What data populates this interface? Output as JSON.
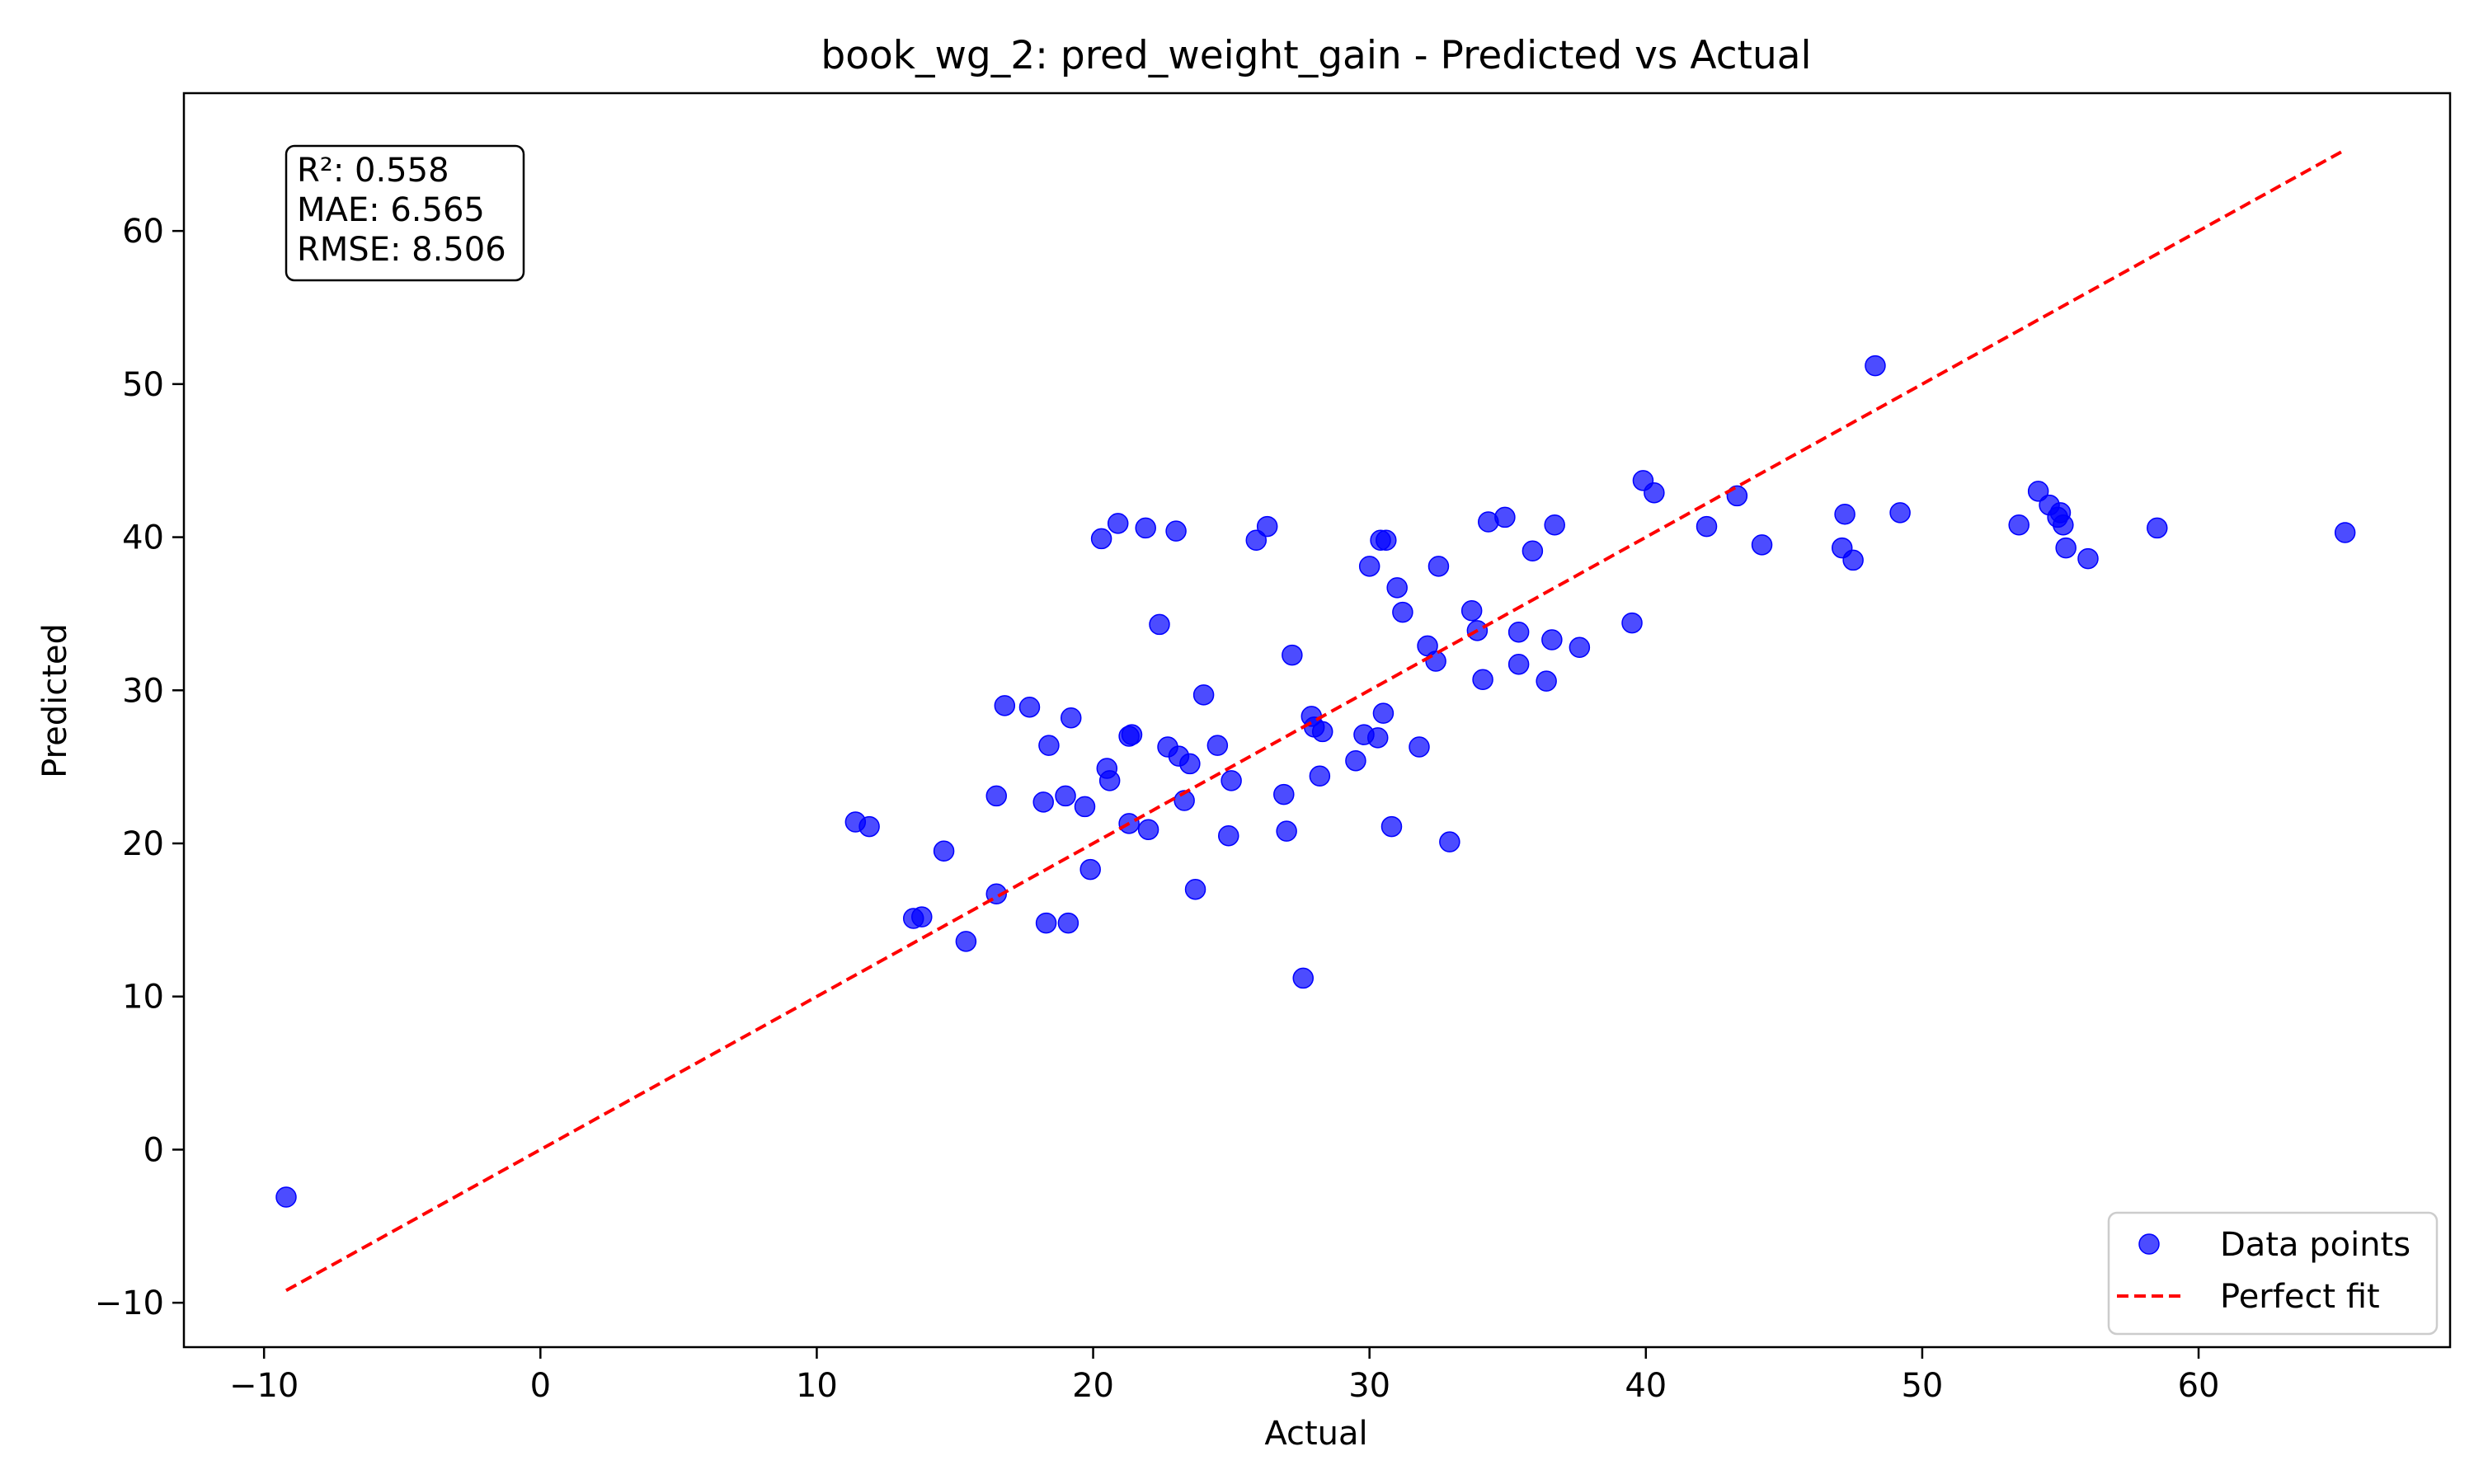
{
  "chart_data": {
    "type": "scatter",
    "title": "book_wg_2: pred_weight_gain - Predicted vs Actual",
    "xlabel": "Actual",
    "ylabel": "Predicted",
    "xlim": [
      -12.9,
      69.1
    ],
    "ylim": [
      -12.9,
      69.0
    ],
    "xticks": [
      -10,
      0,
      10,
      20,
      30,
      40,
      50,
      60
    ],
    "yticks": [
      -10,
      0,
      10,
      20,
      30,
      40,
      50,
      60
    ],
    "xtick_labels": [
      "−10",
      "0",
      "10",
      "20",
      "30",
      "40",
      "50",
      "60"
    ],
    "ytick_labels": [
      "−10",
      "0",
      "10",
      "20",
      "30",
      "40",
      "50",
      "60"
    ],
    "grid": false,
    "legend_position": "lower-right",
    "stats_box": [
      "R²: 0.558",
      "MAE: 6.565",
      "RMSE: 8.506"
    ],
    "series": [
      {
        "name": "Data points",
        "kind": "scatter",
        "color": "#0000ff",
        "x": [
          -9.2,
          11.4,
          11.9,
          13.5,
          13.8,
          14.6,
          15.4,
          16.5,
          16.5,
          16.8,
          17.7,
          18.2,
          18.3,
          18.4,
          19.0,
          19.1,
          19.2,
          19.7,
          19.9,
          20.3,
          20.5,
          20.6,
          20.9,
          21.3,
          21.3,
          21.4,
          21.9,
          22.0,
          22.4,
          22.7,
          23.0,
          23.1,
          23.3,
          23.5,
          23.7,
          24.0,
          24.5,
          24.9,
          25.0,
          25.9,
          26.3,
          26.9,
          27.0,
          27.2,
          27.6,
          27.9,
          28.0,
          28.2,
          28.3,
          29.5,
          29.8,
          30.0,
          30.3,
          30.4,
          30.5,
          30.6,
          30.8,
          31.0,
          31.2,
          31.8,
          32.1,
          32.4,
          32.5,
          32.9,
          33.7,
          33.9,
          34.1,
          34.3,
          34.9,
          35.4,
          35.4,
          35.9,
          36.4,
          36.6,
          36.7,
          37.6,
          39.5,
          39.9,
          40.3,
          42.2,
          43.3,
          44.2,
          47.1,
          47.2,
          47.5,
          48.3,
          49.2,
          53.5,
          54.2,
          54.6,
          54.9,
          55.0,
          55.1,
          55.2,
          56.0,
          58.5,
          65.3
        ],
        "y": [
          -3.1,
          21.4,
          21.1,
          15.1,
          15.2,
          19.5,
          13.6,
          23.1,
          16.7,
          29.0,
          28.9,
          22.7,
          14.8,
          26.4,
          23.1,
          14.8,
          28.2,
          22.4,
          18.3,
          39.9,
          24.9,
          24.1,
          40.9,
          27.0,
          21.3,
          27.1,
          40.6,
          20.9,
          34.3,
          26.3,
          40.4,
          25.7,
          22.8,
          25.2,
          17.0,
          29.7,
          26.4,
          20.5,
          24.1,
          39.8,
          40.7,
          23.2,
          20.8,
          32.3,
          11.2,
          28.3,
          27.6,
          24.4,
          27.3,
          25.4,
          27.1,
          38.1,
          26.9,
          39.8,
          28.5,
          39.8,
          21.1,
          36.7,
          35.1,
          26.3,
          32.9,
          31.9,
          38.1,
          20.1,
          35.2,
          33.9,
          30.7,
          41.0,
          41.3,
          33.8,
          31.7,
          39.1,
          30.6,
          33.3,
          40.8,
          32.8,
          34.4,
          43.7,
          42.9,
          40.7,
          42.7,
          39.5,
          39.3,
          41.5,
          38.5,
          51.2,
          41.6,
          40.8,
          43.0,
          42.1,
          41.3,
          41.6,
          40.8,
          39.3,
          38.6,
          40.6,
          40.3
        ]
      },
      {
        "name": "Perfect fit",
        "kind": "line",
        "color": "#ff0000",
        "dashed": true,
        "x": [
          -9.2,
          65.3
        ],
        "y": [
          -9.2,
          65.3
        ]
      }
    ]
  }
}
